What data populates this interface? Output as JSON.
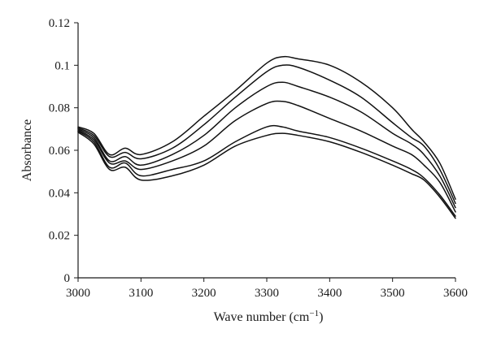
{
  "chart_data": {
    "type": "line",
    "xlabel": "Wave number (cm",
    "xlabel_sup": "−1",
    "xlabel_end": ")",
    "ylabel": "Absorbance",
    "xlim": [
      3000,
      3600
    ],
    "ylim": [
      0,
      0.12
    ],
    "xticks": [
      3000,
      3100,
      3200,
      3300,
      3400,
      3500,
      3600
    ],
    "yticks": [
      0,
      0.02,
      0.04,
      0.06,
      0.08,
      0.1,
      0.12
    ],
    "ytick_labels": [
      "0",
      "0.02",
      "0.04",
      "0.06",
      "0.08",
      "0.1",
      "0.12"
    ],
    "grid": false,
    "series_color": "#111111",
    "x": [
      3000,
      3025,
      3050,
      3075,
      3100,
      3150,
      3200,
      3250,
      3300,
      3325,
      3350,
      3400,
      3450,
      3500,
      3530,
      3550,
      3575,
      3600
    ],
    "series": [
      {
        "values": [
          0.071,
          0.068,
          0.058,
          0.061,
          0.058,
          0.064,
          0.076,
          0.088,
          0.101,
          0.104,
          0.103,
          0.1,
          0.092,
          0.08,
          0.07,
          0.064,
          0.054,
          0.037
        ]
      },
      {
        "values": [
          0.0705,
          0.067,
          0.057,
          0.059,
          0.056,
          0.061,
          0.072,
          0.085,
          0.097,
          0.1,
          0.099,
          0.093,
          0.085,
          0.073,
          0.066,
          0.062,
          0.051,
          0.035
        ]
      },
      {
        "values": [
          0.07,
          0.066,
          0.055,
          0.057,
          0.053,
          0.058,
          0.067,
          0.08,
          0.09,
          0.092,
          0.09,
          0.085,
          0.078,
          0.068,
          0.063,
          0.058,
          0.048,
          0.033
        ]
      },
      {
        "values": [
          0.0695,
          0.065,
          0.054,
          0.055,
          0.051,
          0.055,
          0.062,
          0.074,
          0.082,
          0.083,
          0.081,
          0.075,
          0.069,
          0.062,
          0.058,
          0.053,
          0.045,
          0.031
        ]
      },
      {
        "values": [
          0.069,
          0.064,
          0.052,
          0.054,
          0.048,
          0.051,
          0.055,
          0.064,
          0.071,
          0.071,
          0.069,
          0.066,
          0.061,
          0.055,
          0.051,
          0.047,
          0.039,
          0.029
        ]
      },
      {
        "values": [
          0.0685,
          0.063,
          0.051,
          0.052,
          0.046,
          0.048,
          0.053,
          0.062,
          0.067,
          0.068,
          0.067,
          0.064,
          0.059,
          0.053,
          0.049,
          0.046,
          0.038,
          0.028
        ]
      }
    ]
  }
}
